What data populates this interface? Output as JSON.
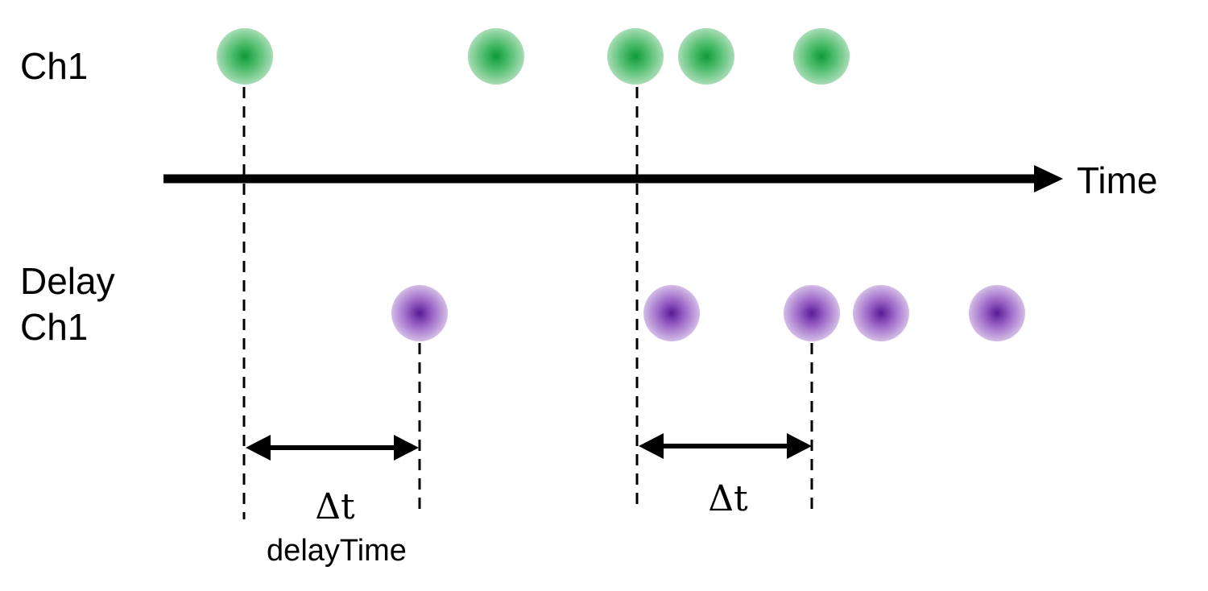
{
  "labels": {
    "channel": "Ch1",
    "delay_line1": "Delay",
    "delay_line2": "Ch1",
    "axis": "Time",
    "delta_left": "Δt",
    "delta_right": "Δt",
    "delta_caption": "delayTime"
  },
  "colors": {
    "channel_dot": "#1fa84a",
    "delay_dot": "#7a2fb0",
    "line": "#000000"
  },
  "events": {
    "channel": 5,
    "delay": 5
  }
}
